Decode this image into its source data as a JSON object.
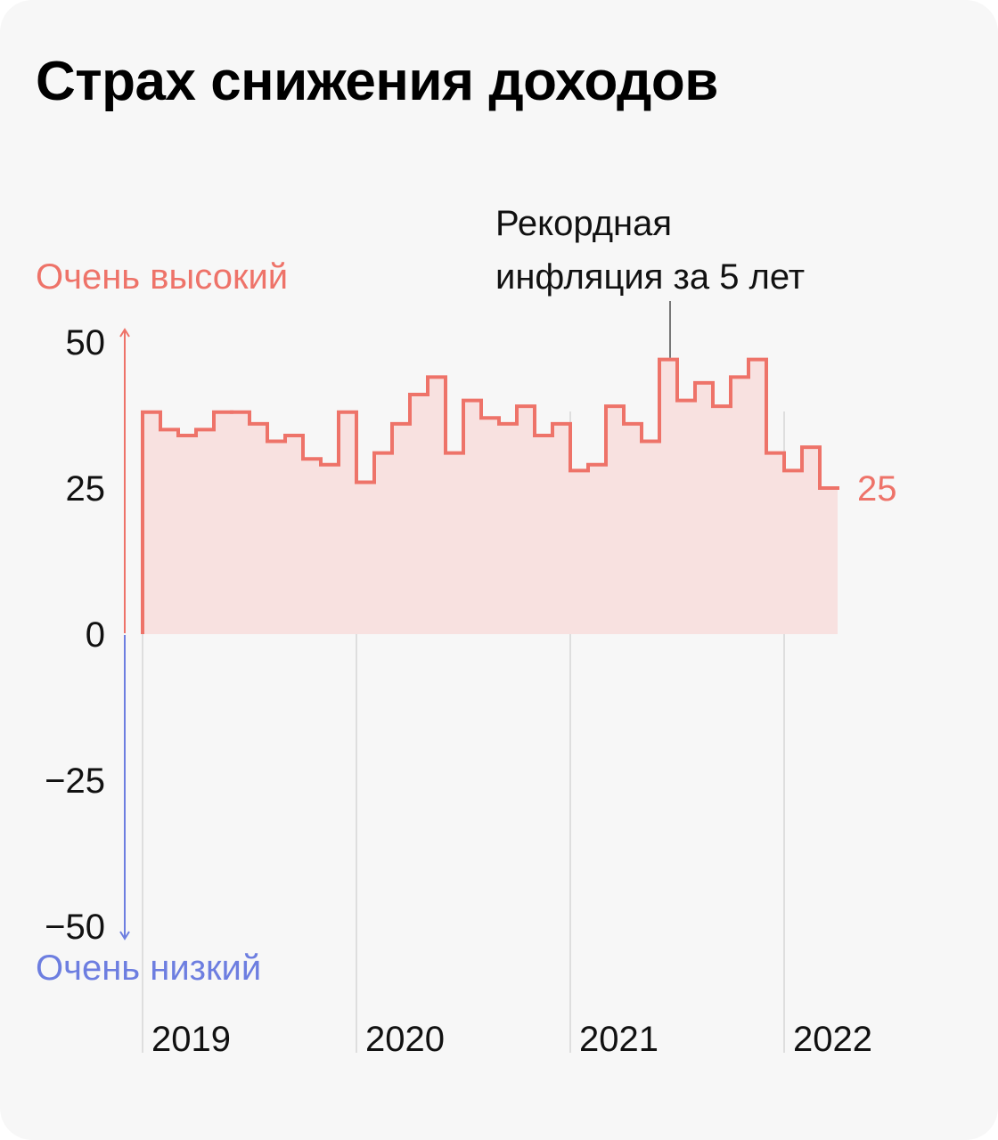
{
  "title": "Страх снижения доходов",
  "colors": {
    "positive": "#ee7369",
    "negative": "#6d7ee0",
    "area_fill": "#f8e1e0",
    "background": "#f7f7f7",
    "gridline": "#d6d6d6"
  },
  "chart_data": {
    "type": "area",
    "step": true,
    "title": "Страх снижения доходов",
    "ylim": [
      -50,
      50
    ],
    "yticks": [
      "50",
      "25",
      "0",
      "−25",
      "−50"
    ],
    "ytick_values": [
      50,
      25,
      0,
      -25,
      -50
    ],
    "ylabel_top": "Очень высокий",
    "ylabel_bottom": "Очень низкий",
    "x_start_year": 2019,
    "year_labels": [
      "2019",
      "2020",
      "2021",
      "2022"
    ],
    "values": [
      38,
      35,
      34,
      35,
      38,
      38,
      36,
      33,
      34,
      30,
      29,
      38,
      26,
      31,
      36,
      41,
      44,
      31,
      40,
      37,
      36,
      39,
      34,
      36,
      28,
      29,
      39,
      36,
      33,
      47,
      40,
      43,
      39,
      44,
      47,
      31,
      28,
      32,
      25
    ],
    "last_value_label": "25",
    "annotation": {
      "text_lines": [
        "Рекордная",
        "инфляция за 5 лет"
      ],
      "index": 29
    }
  }
}
